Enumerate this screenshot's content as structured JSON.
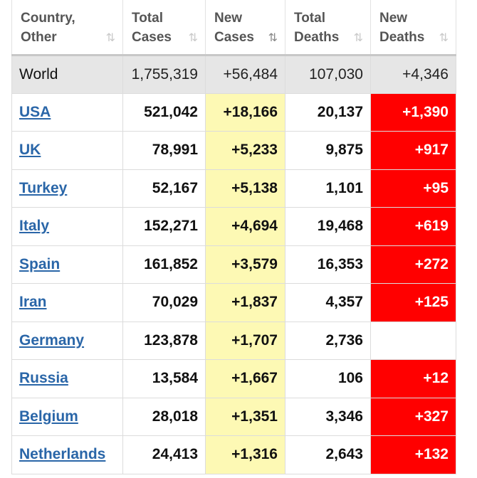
{
  "header": {
    "country": [
      "Country,",
      "Other"
    ],
    "total_cases": [
      "Total",
      "Cases"
    ],
    "new_cases": [
      "New",
      "Cases"
    ],
    "total_deaths": [
      "Total",
      "Deaths"
    ],
    "new_deaths": [
      "New",
      "Deaths"
    ],
    "sort_icon": "⇅",
    "sort_active_icon": "⇅"
  },
  "world": {
    "country": "World",
    "total_cases": "1,755,319",
    "new_cases": "+56,484",
    "total_deaths": "107,030",
    "new_deaths": "+4,346"
  },
  "rows": [
    {
      "country": "USA",
      "total_cases": "521,042",
      "new_cases": "+18,166",
      "total_deaths": "20,137",
      "new_deaths": "+1,390"
    },
    {
      "country": "UK",
      "total_cases": "78,991",
      "new_cases": "+5,233",
      "total_deaths": "9,875",
      "new_deaths": "+917"
    },
    {
      "country": "Turkey",
      "total_cases": "52,167",
      "new_cases": "+5,138",
      "total_deaths": "1,101",
      "new_deaths": "+95"
    },
    {
      "country": "Italy",
      "total_cases": "152,271",
      "new_cases": "+4,694",
      "total_deaths": "19,468",
      "new_deaths": "+619"
    },
    {
      "country": "Spain",
      "total_cases": "161,852",
      "new_cases": "+3,579",
      "total_deaths": "16,353",
      "new_deaths": "+272"
    },
    {
      "country": "Iran",
      "total_cases": "70,029",
      "new_cases": "+1,837",
      "total_deaths": "4,357",
      "new_deaths": "+125"
    },
    {
      "country": "Germany",
      "total_cases": "123,878",
      "new_cases": "+1,707",
      "total_deaths": "2,736",
      "new_deaths": ""
    },
    {
      "country": "Russia",
      "total_cases": "13,584",
      "new_cases": "+1,667",
      "total_deaths": "106",
      "new_deaths": "+12"
    },
    {
      "country": "Belgium",
      "total_cases": "28,018",
      "new_cases": "+1,351",
      "total_deaths": "3,346",
      "new_deaths": "+327"
    },
    {
      "country": "Netherlands",
      "total_cases": "24,413",
      "new_cases": "+1,316",
      "total_deaths": "2,643",
      "new_deaths": "+132"
    }
  ],
  "colors": {
    "new_cases_bg": "#fdf9b4",
    "new_deaths_bg": "#ff0000",
    "link": "#2a66a8",
    "world_bg": "#e6e6e6"
  }
}
